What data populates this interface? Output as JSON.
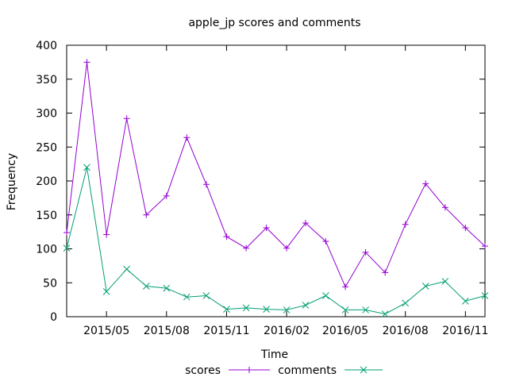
{
  "chart_data": {
    "type": "line",
    "title": "apple_jp scores and comments",
    "xlabel": "Time",
    "ylabel": "Frequency",
    "ylim": [
      0,
      400
    ],
    "yticks": [
      0,
      50,
      100,
      150,
      200,
      250,
      300,
      350,
      400
    ],
    "xlim": [
      "2015-03-01",
      "2016-12-01"
    ],
    "xticks": [
      {
        "date": "2015-05-01",
        "label": "2015/05"
      },
      {
        "date": "2015-08-01",
        "label": "2015/08"
      },
      {
        "date": "2015-11-01",
        "label": "2015/11"
      },
      {
        "date": "2016-02-01",
        "label": "2016/02"
      },
      {
        "date": "2016-05-01",
        "label": "2016/05"
      },
      {
        "date": "2016-08-01",
        "label": "2016/08"
      },
      {
        "date": "2016-11-01",
        "label": "2016/11"
      }
    ],
    "x": [
      "2015-03-01",
      "2015-04-01",
      "2015-05-01",
      "2015-06-01",
      "2015-07-01",
      "2015-08-01",
      "2015-09-01",
      "2015-10-01",
      "2015-11-01",
      "2015-12-01",
      "2016-01-01",
      "2016-02-01",
      "2016-03-01",
      "2016-04-01",
      "2016-05-01",
      "2016-06-01",
      "2016-07-01",
      "2016-08-01",
      "2016-09-01",
      "2016-10-01",
      "2016-11-01",
      "2016-12-01"
    ],
    "series": [
      {
        "name": "scores",
        "color": "#9400d3",
        "marker": "plus",
        "values": [
          124,
          375,
          121,
          292,
          150,
          178,
          264,
          195,
          118,
          101,
          131,
          101,
          138,
          111,
          44,
          95,
          65,
          136,
          196,
          161,
          131,
          104
        ]
      },
      {
        "name": "comments",
        "color": "#009e73",
        "marker": "cross",
        "values": [
          101,
          220,
          37,
          70,
          45,
          42,
          29,
          31,
          11,
          13,
          11,
          10,
          17,
          31,
          10,
          10,
          4,
          20,
          45,
          52,
          23,
          31
        ]
      }
    ],
    "legend_position": "bottom-center",
    "grid": false
  }
}
